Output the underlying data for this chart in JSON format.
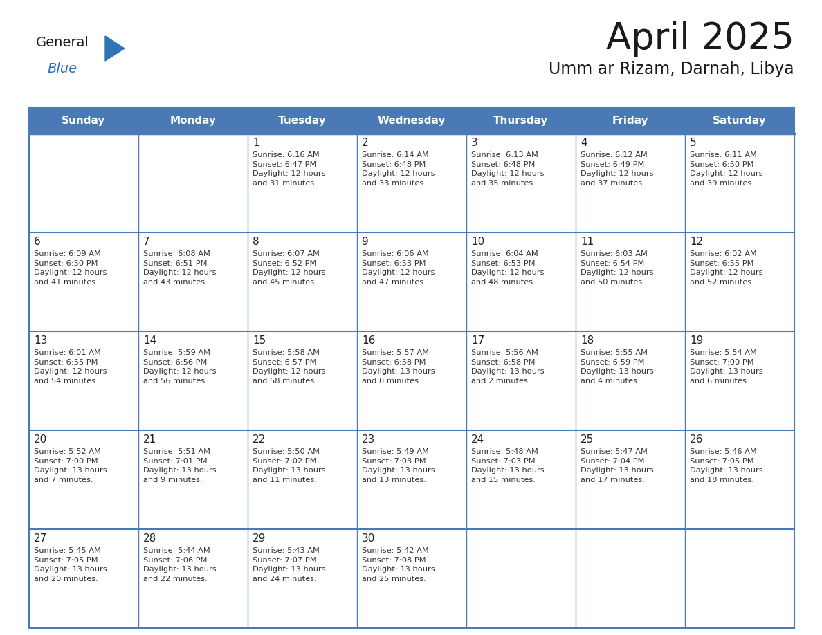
{
  "title": "April 2025",
  "subtitle": "Umm ar Rizam, Darnah, Libya",
  "days_of_week": [
    "Sunday",
    "Monday",
    "Tuesday",
    "Wednesday",
    "Thursday",
    "Friday",
    "Saturday"
  ],
  "header_bg": "#4a7ab5",
  "header_text": "#FFFFFF",
  "cell_bg": "#FFFFFF",
  "cell_border": "#4a7ab5",
  "row_separator": "#4a7ab5",
  "title_color": "#1a1a1a",
  "subtitle_color": "#1a1a1a",
  "text_color": "#333333",
  "day_num_color": "#222222",
  "logo_general_color": "#1a1a1a",
  "logo_blue_color": "#2E75B6",
  "calendar": [
    [
      {
        "day": null,
        "info": null
      },
      {
        "day": null,
        "info": null
      },
      {
        "day": 1,
        "info": "Sunrise: 6:16 AM\nSunset: 6:47 PM\nDaylight: 12 hours\nand 31 minutes."
      },
      {
        "day": 2,
        "info": "Sunrise: 6:14 AM\nSunset: 6:48 PM\nDaylight: 12 hours\nand 33 minutes."
      },
      {
        "day": 3,
        "info": "Sunrise: 6:13 AM\nSunset: 6:48 PM\nDaylight: 12 hours\nand 35 minutes."
      },
      {
        "day": 4,
        "info": "Sunrise: 6:12 AM\nSunset: 6:49 PM\nDaylight: 12 hours\nand 37 minutes."
      },
      {
        "day": 5,
        "info": "Sunrise: 6:11 AM\nSunset: 6:50 PM\nDaylight: 12 hours\nand 39 minutes."
      }
    ],
    [
      {
        "day": 6,
        "info": "Sunrise: 6:09 AM\nSunset: 6:50 PM\nDaylight: 12 hours\nand 41 minutes."
      },
      {
        "day": 7,
        "info": "Sunrise: 6:08 AM\nSunset: 6:51 PM\nDaylight: 12 hours\nand 43 minutes."
      },
      {
        "day": 8,
        "info": "Sunrise: 6:07 AM\nSunset: 6:52 PM\nDaylight: 12 hours\nand 45 minutes."
      },
      {
        "day": 9,
        "info": "Sunrise: 6:06 AM\nSunset: 6:53 PM\nDaylight: 12 hours\nand 47 minutes."
      },
      {
        "day": 10,
        "info": "Sunrise: 6:04 AM\nSunset: 6:53 PM\nDaylight: 12 hours\nand 48 minutes."
      },
      {
        "day": 11,
        "info": "Sunrise: 6:03 AM\nSunset: 6:54 PM\nDaylight: 12 hours\nand 50 minutes."
      },
      {
        "day": 12,
        "info": "Sunrise: 6:02 AM\nSunset: 6:55 PM\nDaylight: 12 hours\nand 52 minutes."
      }
    ],
    [
      {
        "day": 13,
        "info": "Sunrise: 6:01 AM\nSunset: 6:55 PM\nDaylight: 12 hours\nand 54 minutes."
      },
      {
        "day": 14,
        "info": "Sunrise: 5:59 AM\nSunset: 6:56 PM\nDaylight: 12 hours\nand 56 minutes."
      },
      {
        "day": 15,
        "info": "Sunrise: 5:58 AM\nSunset: 6:57 PM\nDaylight: 12 hours\nand 58 minutes."
      },
      {
        "day": 16,
        "info": "Sunrise: 5:57 AM\nSunset: 6:58 PM\nDaylight: 13 hours\nand 0 minutes."
      },
      {
        "day": 17,
        "info": "Sunrise: 5:56 AM\nSunset: 6:58 PM\nDaylight: 13 hours\nand 2 minutes."
      },
      {
        "day": 18,
        "info": "Sunrise: 5:55 AM\nSunset: 6:59 PM\nDaylight: 13 hours\nand 4 minutes."
      },
      {
        "day": 19,
        "info": "Sunrise: 5:54 AM\nSunset: 7:00 PM\nDaylight: 13 hours\nand 6 minutes."
      }
    ],
    [
      {
        "day": 20,
        "info": "Sunrise: 5:52 AM\nSunset: 7:00 PM\nDaylight: 13 hours\nand 7 minutes."
      },
      {
        "day": 21,
        "info": "Sunrise: 5:51 AM\nSunset: 7:01 PM\nDaylight: 13 hours\nand 9 minutes."
      },
      {
        "day": 22,
        "info": "Sunrise: 5:50 AM\nSunset: 7:02 PM\nDaylight: 13 hours\nand 11 minutes."
      },
      {
        "day": 23,
        "info": "Sunrise: 5:49 AM\nSunset: 7:03 PM\nDaylight: 13 hours\nand 13 minutes."
      },
      {
        "day": 24,
        "info": "Sunrise: 5:48 AM\nSunset: 7:03 PM\nDaylight: 13 hours\nand 15 minutes."
      },
      {
        "day": 25,
        "info": "Sunrise: 5:47 AM\nSunset: 7:04 PM\nDaylight: 13 hours\nand 17 minutes."
      },
      {
        "day": 26,
        "info": "Sunrise: 5:46 AM\nSunset: 7:05 PM\nDaylight: 13 hours\nand 18 minutes."
      }
    ],
    [
      {
        "day": 27,
        "info": "Sunrise: 5:45 AM\nSunset: 7:05 PM\nDaylight: 13 hours\nand 20 minutes."
      },
      {
        "day": 28,
        "info": "Sunrise: 5:44 AM\nSunset: 7:06 PM\nDaylight: 13 hours\nand 22 minutes."
      },
      {
        "day": 29,
        "info": "Sunrise: 5:43 AM\nSunset: 7:07 PM\nDaylight: 13 hours\nand 24 minutes."
      },
      {
        "day": 30,
        "info": "Sunrise: 5:42 AM\nSunset: 7:08 PM\nDaylight: 13 hours\nand 25 minutes."
      },
      {
        "day": null,
        "info": null
      },
      {
        "day": null,
        "info": null
      },
      {
        "day": null,
        "info": null
      }
    ]
  ]
}
